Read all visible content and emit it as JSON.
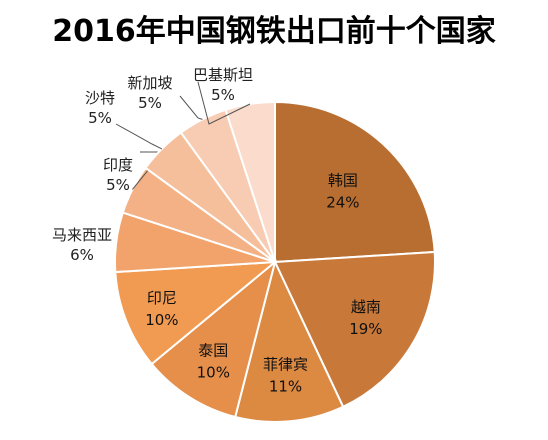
{
  "chart_data": {
    "type": "pie",
    "title": "2016年中国钢铁出口前十个国家",
    "slices": [
      {
        "label": "韩国",
        "value": 24,
        "display": "24%",
        "color": "#B86E31"
      },
      {
        "label": "越南",
        "value": 19,
        "display": "19%",
        "color": "#C8793A"
      },
      {
        "label": "菲律宾",
        "value": 11,
        "display": "11%",
        "color": "#DC8942"
      },
      {
        "label": "泰国",
        "value": 10,
        "display": "10%",
        "color": "#E68F4A"
      },
      {
        "label": "印尼",
        "value": 10,
        "display": "10%",
        "color": "#F19A52"
      },
      {
        "label": "马来西亚",
        "value": 6,
        "display": "6%",
        "color": "#F2A36B"
      },
      {
        "label": "印度",
        "value": 5,
        "display": "5%",
        "color": "#F4B185"
      },
      {
        "label": "沙特",
        "value": 5,
        "display": "5%",
        "color": "#F6BF9C"
      },
      {
        "label": "新加坡",
        "value": 5,
        "display": "5%",
        "color": "#F8CCB2"
      },
      {
        "label": "巴基斯坦",
        "value": 5,
        "display": "5%",
        "color": "#FADBCC"
      }
    ],
    "start_angle_deg": 0,
    "direction": "clockwise",
    "labels": "inside for large slices, outside with leader lines for small slices"
  }
}
